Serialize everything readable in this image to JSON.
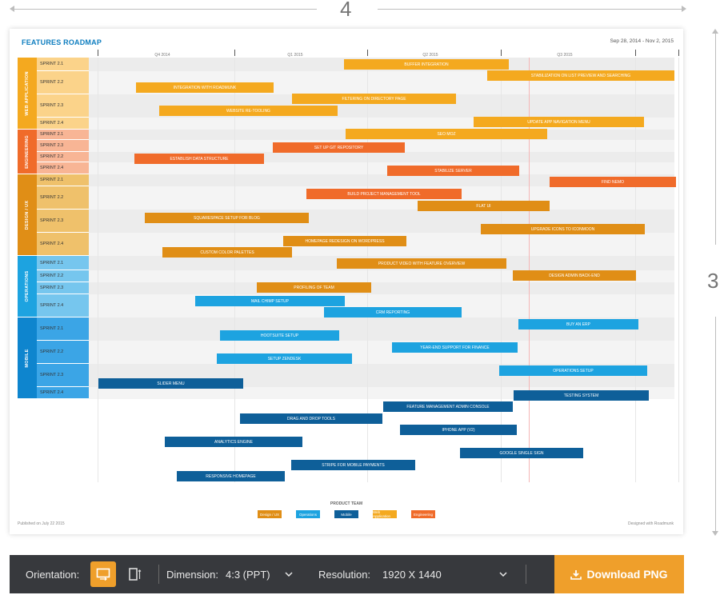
{
  "dimensions": {
    "width_label": "4",
    "height_label": "3"
  },
  "roadmap": {
    "title": "FEATURES ROADMAP",
    "date_range": "Sep 28, 2014 - Nov 2, 2015",
    "quarters": [
      "Q4 2014",
      "Q1 2015",
      "Q2 2015",
      "Q3 2015"
    ],
    "groups": [
      {
        "name": "WEB APPLICATION",
        "color": "#f4a91f",
        "light": "#fbd38a"
      },
      {
        "name": "ENGINEERING",
        "color": "#f06b2a",
        "light": "#f8b595"
      },
      {
        "name": "DESIGN / UX",
        "color": "#e08e16",
        "light": "#efc16b"
      },
      {
        "name": "OPERATIONS",
        "color": "#1da3e0",
        "light": "#76c6ee"
      },
      {
        "name": "MOBILE",
        "color": "#0e85ce",
        "light": "#3ba5e6"
      }
    ],
    "sprints": [
      {
        "label": "SPRINT 2.1"
      },
      {
        "label": "SPRINT 2.2"
      },
      {
        "label": "SPRINT 2.3"
      },
      {
        "label": "SPRINT 2.4"
      },
      {
        "label": "SPRINT 2.1"
      },
      {
        "label": "SPRINT 2.3"
      },
      {
        "label": "SPRINT 2.2"
      },
      {
        "label": "SPRINT 2.4"
      },
      {
        "label": "SPRINT 2.1"
      },
      {
        "label": "SPRINT 2.2"
      },
      {
        "label": "SPRINT 2.3"
      },
      {
        "label": "SPRINT 2.4"
      },
      {
        "label": "SPRINT 2.1"
      },
      {
        "label": "SPRINT 2.2"
      },
      {
        "label": "SPRINT 2.3"
      },
      {
        "label": "SPRINT 2.4"
      },
      {
        "label": "SPRINT 2.1"
      },
      {
        "label": "SPRINT 2.2"
      },
      {
        "label": "SPRINT 2.3"
      },
      {
        "label": "SPRINT 2.4"
      }
    ],
    "bars": [
      {
        "label": "BUFFER INTEGRATION"
      },
      {
        "label": "STABILIZATION ON LIST PREVIEW AND SEARCHING"
      },
      {
        "label": "INTEGRATION WITH ROADMUNK"
      },
      {
        "label": "FILTERING ON DIRECTORY PAGE"
      },
      {
        "label": "WEBSITE RE-TOOLING"
      },
      {
        "label": "UPDATE APP NAVIGATION MENU"
      },
      {
        "label": "SEO MOZ"
      },
      {
        "label": "SET UP GIT REPOSITORY"
      },
      {
        "label": "ESTABLISH DATA STRUCTURE"
      },
      {
        "label": "STABILIZE SERVER"
      },
      {
        "label": "FIND NEMO"
      },
      {
        "label": "BUILD PROJECT MANAGEMENT TOOL"
      },
      {
        "label": "FLAT UI"
      },
      {
        "label": "SQUARESPACE SETUP FOR BLOG"
      },
      {
        "label": "UPGRADE ICONS TO ICONMOON"
      },
      {
        "label": "HOMEPAGE REDESIGN ON WORDPRESS"
      },
      {
        "label": "CUSTOM COLOR PALETTES"
      },
      {
        "label": "PRODUCT VIDEO WITH FEATURE OVERVIEW"
      },
      {
        "label": "DESIGN ADMIN BACK-END"
      },
      {
        "label": "PROFILING OF TEAM"
      },
      {
        "label": "MAIL CHIMP SETUP"
      },
      {
        "label": "CRM REPORTING"
      },
      {
        "label": "BUY AN ERP"
      },
      {
        "label": "HOOTSUITE SETUP"
      },
      {
        "label": "YEAR-END SUPPORT FOR FINANCE"
      },
      {
        "label": "SETUP ZENDESK"
      },
      {
        "label": "OPERATIONS SETUP"
      },
      {
        "label": "SLIDER MENU"
      },
      {
        "label": "TESTING SYSTEM"
      },
      {
        "label": "FEATURE MANAGEMENT ADMIN CONSOLE"
      },
      {
        "label": "DRAG AND DROP TOOLS"
      },
      {
        "label": "IPHONE APP (V2)"
      },
      {
        "label": "ANALYTICS ENGINE"
      },
      {
        "label": "GOOGLE SINGLE SIGN"
      },
      {
        "label": "STRIPE FOR MOBILE PAYMENTS"
      },
      {
        "label": "RESPONSIVE HOMEPAGE"
      }
    ],
    "product_team_title": "PRODUCT TEAM",
    "legend": [
      {
        "label": "Design / UX",
        "color": "#e08e16"
      },
      {
        "label": "Operations",
        "color": "#1da3e0"
      },
      {
        "label": "Mobile",
        "color": "#0e5f99"
      },
      {
        "label": "Web Application",
        "color": "#f4a91f"
      },
      {
        "label": "Engineering",
        "color": "#f06b2a"
      }
    ],
    "published": "Published on  July 22 2015",
    "designed": "Designed with  Roadmunk"
  },
  "toolbar": {
    "orientation_label": "Orientation:",
    "dimension_label": "Dimension:",
    "dimension_value": "4:3 (PPT)",
    "resolution_label": "Resolution:",
    "resolution_value": "1920 X 1440",
    "download_label": "Download PNG",
    "accent": "#ef9f2b"
  }
}
